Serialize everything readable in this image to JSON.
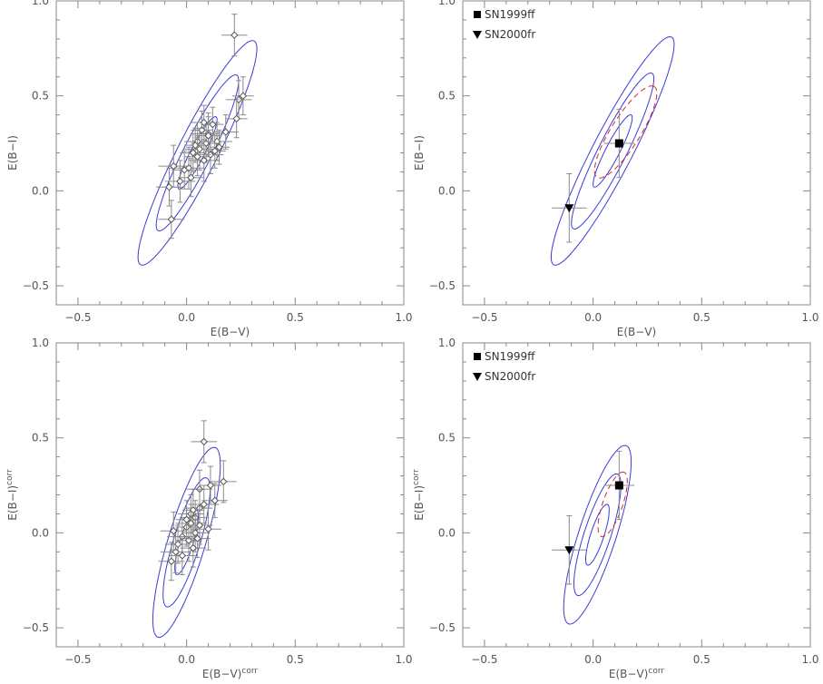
{
  "colors": {
    "contour": "#3b3bd6",
    "error_bar": "#8a8a8a",
    "marker": "#555555",
    "highlight": "#d42a2a",
    "axes": "#888888",
    "text": "#555555"
  },
  "chart_data": [
    {
      "type": "scatter",
      "panel": "top-left",
      "xlabel": "E(B−V)",
      "ylabel": "E(B−I)",
      "xlim": [
        -0.6,
        1.0
      ],
      "ylim": [
        -0.6,
        1.0
      ],
      "xticks": [
        -0.5,
        0.0,
        0.5,
        1.0
      ],
      "yticks": [
        -0.5,
        0.0,
        0.5,
        1.0
      ],
      "xtick_labels": [
        "−0.5",
        "0.0",
        "0.5",
        "1.0"
      ],
      "ytick_labels": [
        "−0.5",
        "0.0",
        "0.5",
        "1.0"
      ],
      "grid": false,
      "contours": [
        {
          "cx": 0.05,
          "cy": 0.2,
          "rx_dir": [
            0.26,
            0.59
          ],
          "ry_dir": [
            -0.085,
            0.04
          ],
          "style": "solid"
        },
        {
          "cx": 0.05,
          "cy": 0.2,
          "rx_dir": [
            0.18,
            0.41
          ],
          "ry_dir": [
            -0.06,
            0.028
          ],
          "style": "solid"
        },
        {
          "cx": 0.05,
          "cy": 0.2,
          "rx_dir": [
            0.085,
            0.19
          ],
          "ry_dir": [
            -0.03,
            0.014
          ],
          "style": "solid"
        }
      ],
      "series": [
        {
          "marker": "diamond",
          "points": [
            {
              "x": 0.22,
              "y": 0.82,
              "xerr": 0.06,
              "yerr": 0.11
            },
            {
              "x": 0.26,
              "y": 0.5,
              "xerr": 0.05,
              "yerr": 0.1
            },
            {
              "x": 0.24,
              "y": 0.48,
              "xerr": 0.06,
              "yerr": 0.1
            },
            {
              "x": 0.23,
              "y": 0.38,
              "xerr": 0.05,
              "yerr": 0.1
            },
            {
              "x": 0.18,
              "y": 0.31,
              "xerr": 0.06,
              "yerr": 0.09
            },
            {
              "x": 0.14,
              "y": 0.26,
              "xerr": 0.07,
              "yerr": 0.1
            },
            {
              "x": 0.12,
              "y": 0.35,
              "xerr": 0.05,
              "yerr": 0.09
            },
            {
              "x": 0.1,
              "y": 0.3,
              "xerr": 0.06,
              "yerr": 0.11
            },
            {
              "x": 0.09,
              "y": 0.25,
              "xerr": 0.07,
              "yerr": 0.1
            },
            {
              "x": 0.08,
              "y": 0.36,
              "xerr": 0.06,
              "yerr": 0.09
            },
            {
              "x": 0.07,
              "y": 0.32,
              "xerr": 0.05,
              "yerr": 0.1
            },
            {
              "x": 0.06,
              "y": 0.22,
              "xerr": 0.07,
              "yerr": 0.11
            },
            {
              "x": 0.05,
              "y": 0.26,
              "xerr": 0.06,
              "yerr": 0.1
            },
            {
              "x": 0.04,
              "y": 0.24,
              "xerr": 0.05,
              "yerr": 0.09
            },
            {
              "x": 0.05,
              "y": 0.18,
              "xerr": 0.06,
              "yerr": 0.1
            },
            {
              "x": 0.08,
              "y": 0.16,
              "xerr": 0.07,
              "yerr": 0.11
            },
            {
              "x": 0.11,
              "y": 0.19,
              "xerr": 0.06,
              "yerr": 0.1
            },
            {
              "x": 0.13,
              "y": 0.21,
              "xerr": 0.05,
              "yerr": 0.09
            },
            {
              "x": 0.03,
              "y": 0.2,
              "xerr": 0.06,
              "yerr": 0.1
            },
            {
              "x": 0.01,
              "y": 0.12,
              "xerr": 0.07,
              "yerr": 0.11
            },
            {
              "x": -0.01,
              "y": 0.11,
              "xerr": 0.06,
              "yerr": 0.1
            },
            {
              "x": 0.02,
              "y": 0.07,
              "xerr": 0.06,
              "yerr": 0.1
            },
            {
              "x": -0.03,
              "y": 0.05,
              "xerr": 0.07,
              "yerr": 0.11
            },
            {
              "x": -0.08,
              "y": 0.02,
              "xerr": 0.06,
              "yerr": 0.1
            },
            {
              "x": -0.07,
              "y": -0.15,
              "xerr": 0.06,
              "yerr": 0.1
            },
            {
              "x": -0.06,
              "y": 0.13,
              "xerr": 0.07,
              "yerr": 0.11
            },
            {
              "x": 0.1,
              "y": 0.29,
              "xerr": 0.06,
              "yerr": 0.1
            },
            {
              "x": 0.15,
              "y": 0.23,
              "xerr": 0.05,
              "yerr": 0.09
            }
          ]
        }
      ]
    },
    {
      "type": "scatter",
      "panel": "top-right",
      "xlabel": "E(B−V)",
      "ylabel": "E(B−I)",
      "xlim": [
        -0.6,
        1.0
      ],
      "ylim": [
        -0.6,
        1.0
      ],
      "xticks": [
        -0.5,
        0.0,
        0.5,
        1.0
      ],
      "yticks": [
        -0.5,
        0.0,
        0.5,
        1.0
      ],
      "xtick_labels": [
        "−0.5",
        "0.0",
        "0.5",
        "1.0"
      ],
      "ytick_labels": [
        "−0.5",
        "0.0",
        "0.5",
        "1.0"
      ],
      "grid": false,
      "legend": [
        {
          "label": "SN1999ff",
          "marker": "square"
        },
        {
          "label": "SN2000fr",
          "marker": "triangle-down"
        }
      ],
      "legend_position": "top-left",
      "contours": [
        {
          "cx": 0.09,
          "cy": 0.21,
          "rx_dir": [
            0.27,
            0.6
          ],
          "ry_dir": [
            -0.085,
            0.04
          ],
          "style": "solid"
        },
        {
          "cx": 0.09,
          "cy": 0.21,
          "rx_dir": [
            0.18,
            0.41
          ],
          "ry_dir": [
            -0.06,
            0.028
          ],
          "style": "solid"
        },
        {
          "cx": 0.09,
          "cy": 0.21,
          "rx_dir": [
            0.085,
            0.19
          ],
          "ry_dir": [
            -0.03,
            0.014
          ],
          "style": "solid"
        },
        {
          "cx": 0.15,
          "cy": 0.31,
          "rx_dir": [
            0.13,
            0.24
          ],
          "ry_dir": [
            -0.06,
            0.035
          ],
          "style": "dashed"
        }
      ],
      "series": [
        {
          "name": "SN1999ff",
          "marker": "square",
          "points": [
            {
              "x": 0.12,
              "y": 0.25,
              "xerr": 0.07,
              "yerr": 0.18
            }
          ]
        },
        {
          "name": "SN2000fr",
          "marker": "triangle-down",
          "points": [
            {
              "x": -0.11,
              "y": -0.09,
              "xerr": 0.08,
              "yerr": 0.18
            }
          ]
        }
      ]
    },
    {
      "type": "scatter",
      "panel": "bottom-left",
      "xlabel": "E(B−V)",
      "xlabel_sup": "corr",
      "ylabel": "E(B−I)",
      "ylabel_sup": "corr",
      "xlim": [
        -0.6,
        1.0
      ],
      "ylim": [
        -0.6,
        1.0
      ],
      "xticks": [
        -0.5,
        0.0,
        0.5,
        1.0
      ],
      "yticks": [
        -0.5,
        0.0,
        0.5,
        1.0
      ],
      "xtick_labels": [
        "−0.5",
        "0.0",
        "0.5",
        "1.0"
      ],
      "ytick_labels": [
        "−0.5",
        "0.0",
        "0.5",
        "1.0"
      ],
      "grid": false,
      "contours": [
        {
          "cx": 0.0,
          "cy": -0.05,
          "rx_dir": [
            0.13,
            0.5
          ],
          "ry_dir": [
            -0.085,
            0.02
          ],
          "style": "solid"
        },
        {
          "cx": 0.0,
          "cy": -0.05,
          "rx_dir": [
            0.09,
            0.34
          ],
          "ry_dir": [
            -0.06,
            0.015
          ],
          "style": "solid"
        },
        {
          "cx": 0.0,
          "cy": -0.05,
          "rx_dir": [
            0.045,
            0.17
          ],
          "ry_dir": [
            -0.03,
            0.008
          ],
          "style": "solid"
        }
      ],
      "series": [
        {
          "marker": "diamond",
          "points": [
            {
              "x": 0.08,
              "y": 0.48,
              "xerr": 0.06,
              "yerr": 0.11
            },
            {
              "x": 0.17,
              "y": 0.27,
              "xerr": 0.06,
              "yerr": 0.11
            },
            {
              "x": 0.11,
              "y": 0.25,
              "xerr": 0.05,
              "yerr": 0.1
            },
            {
              "x": 0.06,
              "y": 0.23,
              "xerr": 0.06,
              "yerr": 0.1
            },
            {
              "x": 0.13,
              "y": 0.17,
              "xerr": 0.06,
              "yerr": 0.09
            },
            {
              "x": 0.08,
              "y": 0.15,
              "xerr": 0.07,
              "yerr": 0.1
            },
            {
              "x": 0.06,
              "y": 0.13,
              "xerr": 0.06,
              "yerr": 0.1
            },
            {
              "x": 0.03,
              "y": 0.12,
              "xerr": 0.05,
              "yerr": 0.11
            },
            {
              "x": 0.02,
              "y": 0.1,
              "xerr": 0.06,
              "yerr": 0.1
            },
            {
              "x": 0.04,
              "y": 0.08,
              "xerr": 0.06,
              "yerr": 0.09
            },
            {
              "x": 0.02,
              "y": 0.05,
              "xerr": 0.07,
              "yerr": 0.1
            },
            {
              "x": 0.06,
              "y": 0.04,
              "xerr": 0.06,
              "yerr": 0.1
            },
            {
              "x": 0.0,
              "y": 0.03,
              "xerr": 0.05,
              "yerr": 0.1
            },
            {
              "x": 0.1,
              "y": 0.02,
              "xerr": 0.06,
              "yerr": 0.11
            },
            {
              "x": 0.04,
              "y": 0.0,
              "xerr": 0.06,
              "yerr": 0.1
            },
            {
              "x": -0.02,
              "y": -0.02,
              "xerr": 0.07,
              "yerr": 0.1
            },
            {
              "x": 0.01,
              "y": -0.04,
              "xerr": 0.06,
              "yerr": 0.11
            },
            {
              "x": -0.04,
              "y": -0.06,
              "xerr": 0.06,
              "yerr": 0.1
            },
            {
              "x": 0.03,
              "y": -0.08,
              "xerr": 0.06,
              "yerr": 0.1
            },
            {
              "x": -0.05,
              "y": -0.1,
              "xerr": 0.07,
              "yerr": 0.11
            },
            {
              "x": -0.07,
              "y": -0.15,
              "xerr": 0.06,
              "yerr": 0.1
            },
            {
              "x": -0.06,
              "y": 0.01,
              "xerr": 0.06,
              "yerr": 0.1
            },
            {
              "x": 0.0,
              "y": 0.07,
              "xerr": 0.05,
              "yerr": 0.1
            },
            {
              "x": 0.05,
              "y": -0.03,
              "xerr": 0.06,
              "yerr": 0.1
            },
            {
              "x": -0.02,
              "y": -0.12,
              "xerr": 0.06,
              "yerr": 0.1
            }
          ]
        }
      ]
    },
    {
      "type": "scatter",
      "panel": "bottom-right",
      "xlabel": "E(B−V)",
      "xlabel_sup": "corr",
      "ylabel": "E(B−I)",
      "ylabel_sup": "corr",
      "xlim": [
        -0.6,
        1.0
      ],
      "ylim": [
        -0.6,
        1.0
      ],
      "xticks": [
        -0.5,
        0.0,
        0.5,
        1.0
      ],
      "yticks": [
        -0.5,
        0.0,
        0.5,
        1.0
      ],
      "xtick_labels": [
        "−0.5",
        "0.0",
        "0.5",
        "1.0"
      ],
      "ytick_labels": [
        "−0.5",
        "0.0",
        "0.5",
        "1.0"
      ],
      "grid": false,
      "legend": [
        {
          "label": "SN1999ff",
          "marker": "square"
        },
        {
          "label": "SN2000fr",
          "marker": "triangle-down"
        }
      ],
      "legend_position": "top-left",
      "contours": [
        {
          "cx": 0.02,
          "cy": -0.01,
          "rx_dir": [
            0.13,
            0.47
          ],
          "ry_dir": [
            -0.085,
            0.02
          ],
          "style": "solid"
        },
        {
          "cx": 0.02,
          "cy": -0.01,
          "rx_dir": [
            0.09,
            0.32
          ],
          "ry_dir": [
            -0.06,
            0.015
          ],
          "style": "solid"
        },
        {
          "cx": 0.02,
          "cy": -0.01,
          "rx_dir": [
            0.045,
            0.16
          ],
          "ry_dir": [
            -0.03,
            0.008
          ],
          "style": "solid"
        },
        {
          "cx": 0.09,
          "cy": 0.15,
          "rx_dir": [
            0.05,
            0.17
          ],
          "ry_dir": [
            -0.045,
            0.01
          ],
          "style": "dashed"
        }
      ],
      "series": [
        {
          "name": "SN1999ff",
          "marker": "square",
          "points": [
            {
              "x": 0.12,
              "y": 0.25,
              "xerr": 0.07,
              "yerr": 0.18
            }
          ]
        },
        {
          "name": "SN2000fr",
          "marker": "triangle-down",
          "points": [
            {
              "x": -0.11,
              "y": -0.09,
              "xerr": 0.08,
              "yerr": 0.18
            }
          ]
        }
      ]
    }
  ]
}
